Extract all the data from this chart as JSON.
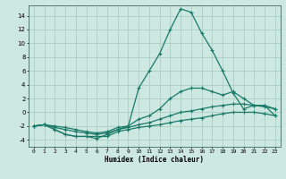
{
  "xlabel": "Humidex (Indice chaleur)",
  "bg_color": "#cce8e0",
  "line_color": "#1a7a6a",
  "grid_color": "#a8c8c0",
  "xlim": [
    -0.5,
    23.5
  ],
  "ylim": [
    -5.0,
    15.5
  ],
  "xticks": [
    0,
    1,
    2,
    3,
    4,
    5,
    6,
    7,
    8,
    9,
    10,
    11,
    12,
    13,
    14,
    15,
    16,
    17,
    18,
    19,
    20,
    21,
    22,
    23
  ],
  "yticks": [
    -4,
    -2,
    0,
    2,
    4,
    6,
    8,
    10,
    12,
    14
  ],
  "line1_x": [
    0,
    1,
    2,
    3,
    4,
    5,
    6,
    7,
    8,
    9,
    10,
    11,
    12,
    13,
    14,
    15,
    16,
    17,
    18,
    19,
    20,
    21,
    22,
    23
  ],
  "line1_y": [
    -2,
    -1.8,
    -2.5,
    -3.2,
    -3.5,
    -3.5,
    -3.5,
    -3.5,
    -2.8,
    -2.5,
    -2.2,
    -2.0,
    -1.8,
    -1.5,
    -1.2,
    -1.0,
    -0.8,
    -0.5,
    -0.2,
    0.0,
    0.0,
    0.0,
    -0.2,
    -0.5
  ],
  "line2_x": [
    0,
    1,
    2,
    3,
    4,
    5,
    6,
    7,
    8,
    9,
    10,
    11,
    12,
    13,
    14,
    15,
    16,
    17,
    18,
    19,
    20,
    21,
    22,
    23
  ],
  "line2_y": [
    -2,
    -1.8,
    -2.2,
    -2.5,
    -2.8,
    -3.0,
    -3.2,
    -3.0,
    -2.5,
    -2.2,
    -1.8,
    -1.5,
    -1.0,
    -0.5,
    0.0,
    0.2,
    0.5,
    0.8,
    1.0,
    1.2,
    1.2,
    1.0,
    0.8,
    0.5
  ],
  "line3_x": [
    0,
    1,
    2,
    3,
    4,
    5,
    6,
    7,
    8,
    9,
    10,
    11,
    12,
    13,
    14,
    15,
    16,
    17,
    18,
    19,
    20,
    21,
    22,
    23
  ],
  "line3_y": [
    -2,
    -1.8,
    -2.0,
    -2.2,
    -2.5,
    -2.8,
    -3.0,
    -2.8,
    -2.2,
    -2.0,
    -1.0,
    -0.5,
    0.5,
    2.0,
    3.0,
    3.5,
    3.5,
    3.0,
    2.5,
    3.0,
    2.0,
    1.0,
    1.0,
    0.5
  ],
  "line4_x": [
    0,
    1,
    2,
    3,
    4,
    5,
    6,
    7,
    8,
    9,
    10,
    11,
    12,
    13,
    14,
    15,
    16,
    17,
    18,
    19,
    20,
    21,
    22,
    23
  ],
  "line4_y": [
    -2,
    -1.8,
    -2.5,
    -3.2,
    -3.5,
    -3.5,
    -3.8,
    -3.2,
    -2.5,
    -2.0,
    3.5,
    6.0,
    8.5,
    12.0,
    15.0,
    14.5,
    11.5,
    9.0,
    6.0,
    2.8,
    0.5,
    1.0,
    1.0,
    -0.5
  ]
}
